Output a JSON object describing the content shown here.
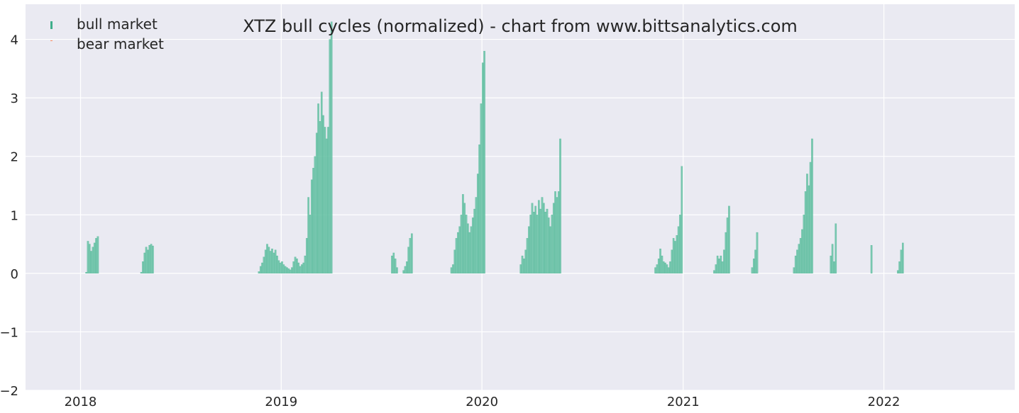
{
  "colors": {
    "plot_background": "#eaeaf2",
    "grid": "#ffffff",
    "bull": "#66c2a5",
    "bull_edge": "#3fae8b",
    "bear": "#fc8d62",
    "text": "#262626"
  },
  "chart_data": {
    "type": "bar",
    "title": "XTZ bull cycles (normalized)  - chart from www.bittsanalytics.com",
    "xlabel": "",
    "ylabel": "",
    "xlim": [
      "2017-09-23",
      "2022-08-27"
    ],
    "ylim": [
      -2,
      4.6
    ],
    "x_ticks": [
      {
        "date": "2018-01-01",
        "label": "2018"
      },
      {
        "date": "2019-01-01",
        "label": "2019"
      },
      {
        "date": "2020-01-01",
        "label": "2020"
      },
      {
        "date": "2021-01-01",
        "label": "2021"
      },
      {
        "date": "2022-01-01",
        "label": "2022"
      }
    ],
    "y_ticks": [
      {
        "value": -2,
        "label": "−2"
      },
      {
        "value": -1,
        "label": "−1"
      },
      {
        "value": 0,
        "label": "0"
      },
      {
        "value": 1,
        "label": "1"
      },
      {
        "value": 2,
        "label": "2"
      },
      {
        "value": 3,
        "label": "3"
      },
      {
        "value": 4,
        "label": "4"
      }
    ],
    "grid": true,
    "legend": {
      "placement": "upper-left",
      "entries": [
        {
          "label": "bull market",
          "series": "bull"
        },
        {
          "label": "bear market",
          "series": "bear"
        }
      ]
    },
    "series": [
      {
        "key": "bull",
        "name": "bull market",
        "segments": [
          {
            "start": "2018-01-10",
            "values": [
              0.02,
              0.55,
              0.5,
              0.38,
              0.45,
              0.52,
              0.6,
              0.63
            ]
          },
          {
            "start": "2018-04-20",
            "values": [
              0.02,
              0.2,
              0.35,
              0.45,
              0.4,
              0.48,
              0.5,
              0.47
            ]
          },
          {
            "start": "2018-11-20",
            "values": [
              0.03,
              0.12,
              0.18,
              0.28,
              0.4,
              0.5,
              0.45,
              0.38,
              0.42,
              0.35,
              0.4,
              0.3,
              0.22,
              0.18,
              0.2,
              0.15,
              0.12,
              0.1,
              0.08,
              0.06,
              0.1,
              0.2,
              0.28,
              0.25,
              0.18,
              0.12,
              0.15,
              0.18,
              0.3,
              0.6,
              1.3,
              1.0,
              1.6,
              1.8,
              2.0,
              2.4,
              2.9,
              2.6,
              3.1,
              2.7,
              2.5,
              2.3,
              2.5,
              4.0,
              4.3
            ]
          },
          {
            "start": "2019-07-20",
            "values": [
              0.3,
              0.35,
              0.25,
              0.1
            ]
          },
          {
            "start": "2019-08-10",
            "values": [
              0.05,
              0.12,
              0.2,
              0.45,
              0.6,
              0.68
            ]
          },
          {
            "start": "2019-11-05",
            "values": [
              0.1,
              0.15,
              0.4,
              0.6,
              0.7,
              0.8,
              1.0,
              1.35,
              1.2,
              1.0,
              0.85,
              0.7,
              0.8,
              0.95,
              1.1,
              1.3,
              1.7,
              2.2,
              2.9,
              3.6,
              3.8
            ]
          },
          {
            "start": "2020-03-10",
            "values": [
              0.15,
              0.3,
              0.25,
              0.4,
              0.6,
              0.8,
              1.0,
              1.2,
              1.05,
              1.15,
              1.0,
              1.25,
              1.1,
              1.3,
              1.2,
              1.05,
              1.1,
              0.95,
              0.8,
              1.0,
              1.2,
              1.4,
              1.3,
              1.4,
              2.3
            ]
          },
          {
            "start": "2020-11-10",
            "values": [
              0.1,
              0.15,
              0.25,
              0.42,
              0.3,
              0.2,
              0.18,
              0.15,
              0.1,
              0.2,
              0.4,
              0.6,
              0.55,
              0.65,
              0.8,
              1.0,
              1.83
            ]
          },
          {
            "start": "2021-02-25",
            "values": [
              0.05,
              0.15,
              0.3,
              0.25,
              0.3,
              0.2,
              0.4,
              0.7,
              0.95,
              1.15
            ]
          },
          {
            "start": "2021-05-05",
            "values": [
              0.1,
              0.25,
              0.4,
              0.7
            ]
          },
          {
            "start": "2021-07-20",
            "values": [
              0.1,
              0.3,
              0.4,
              0.5,
              0.6,
              0.75,
              1.0,
              1.4,
              1.7,
              1.5,
              1.9,
              2.3
            ]
          },
          {
            "start": "2021-09-25",
            "values": [
              0.3,
              0.5,
              0.2,
              0.85
            ]
          },
          {
            "start": "2021-12-08",
            "values": [
              0.48
            ]
          },
          {
            "start": "2022-01-25",
            "values": [
              0.05,
              0.2,
              0.4,
              0.52
            ]
          }
        ]
      },
      {
        "key": "bear",
        "name": "bear market",
        "segments": []
      }
    ]
  }
}
